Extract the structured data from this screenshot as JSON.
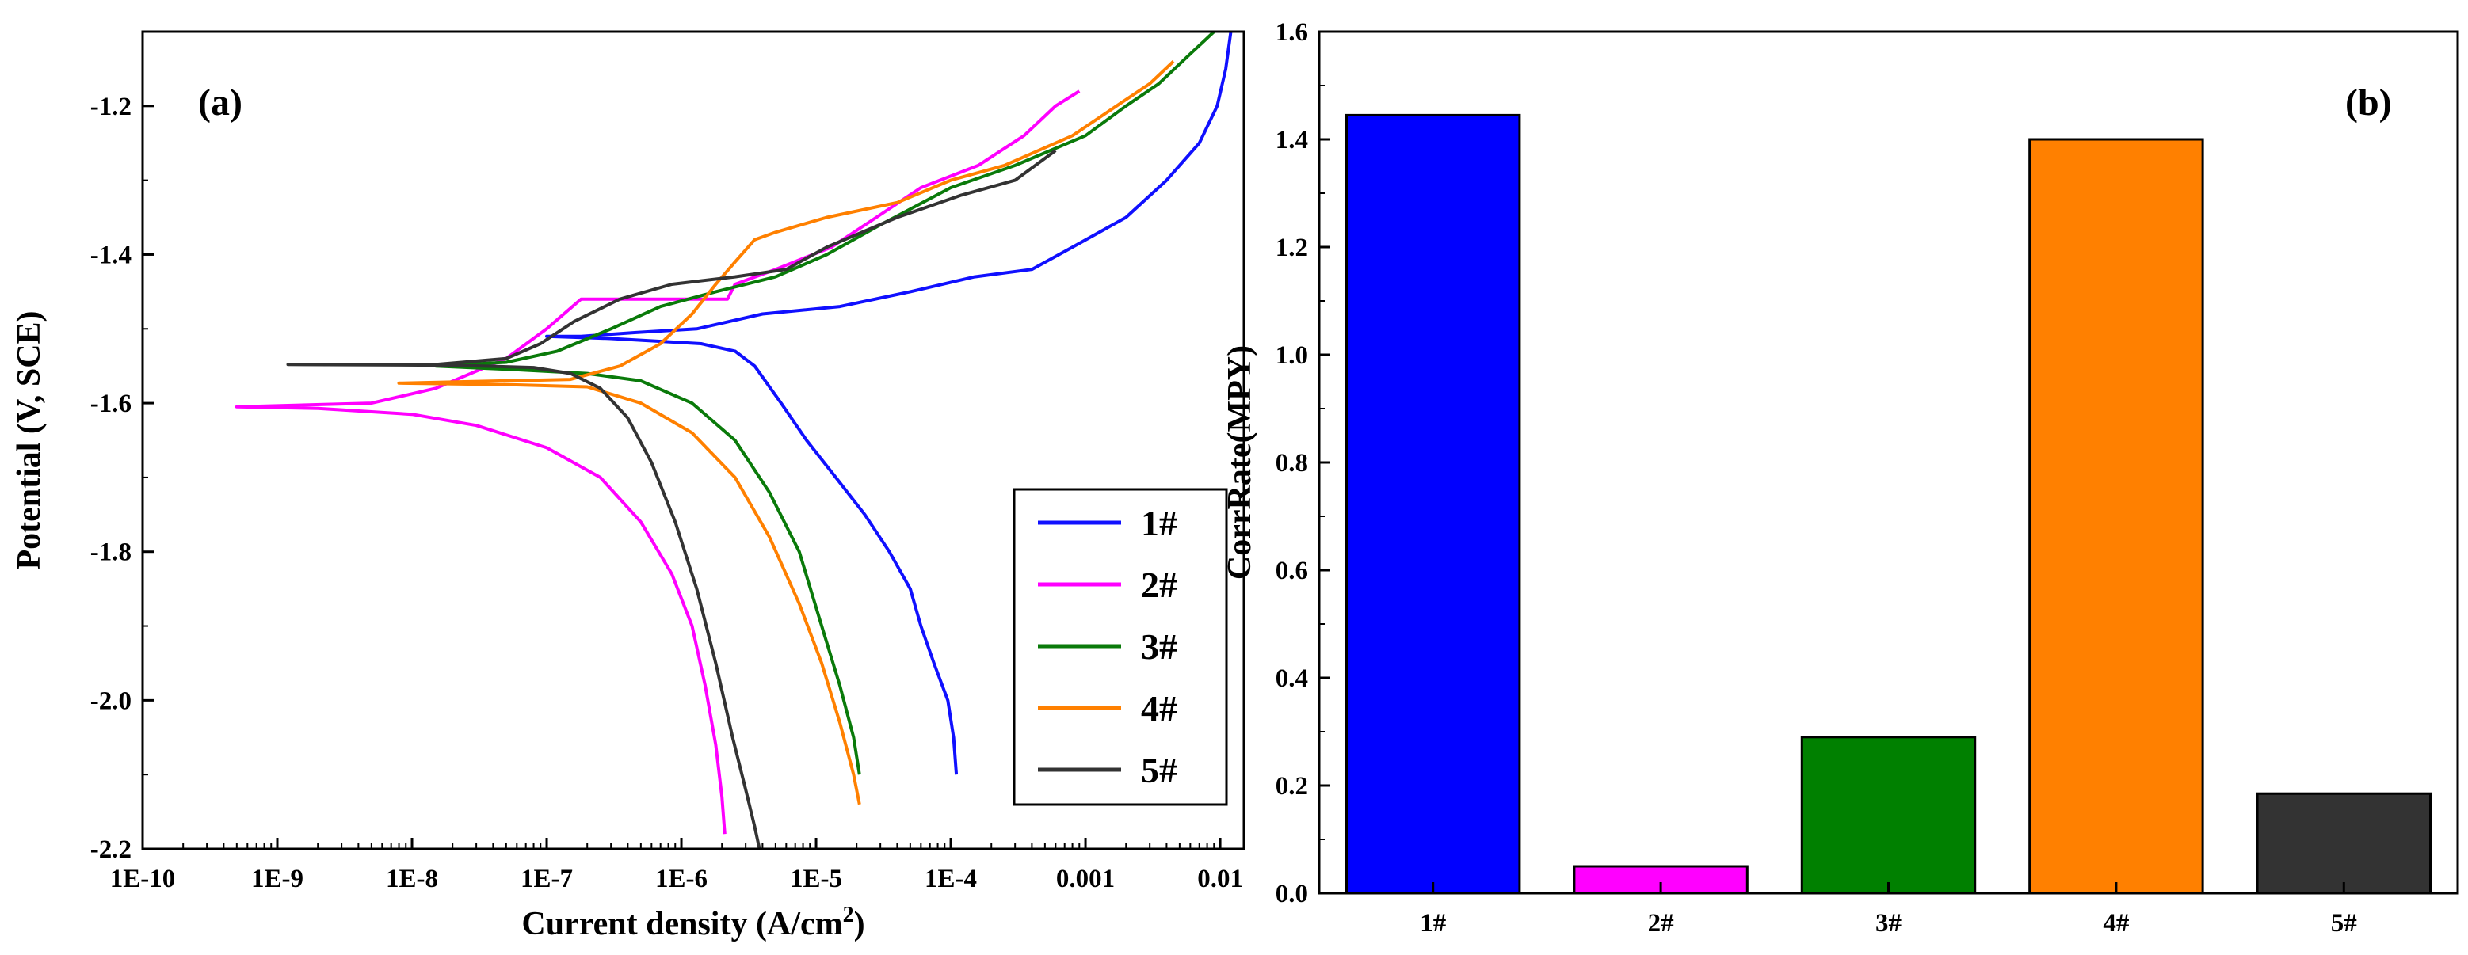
{
  "chart_data": [
    {
      "type": "line",
      "panel_label": "(a)",
      "xlabel": "Current density (A/cm",
      "xlabel_sup": "2",
      "xlabel_tail": ")",
      "ylabel": "Potential (V, SCE)",
      "xscale": "log",
      "xlim": [
        1e-10,
        0.015
      ],
      "ylim": [
        -2.2,
        -1.1
      ],
      "x_ticks": [
        1e-10,
        1e-09,
        1e-08,
        1e-07,
        1e-06,
        1e-05,
        0.0001,
        0.001,
        0.01
      ],
      "x_tick_labels": [
        "1E-10",
        "1E-9",
        "1E-8",
        "1E-7",
        "1E-6",
        "1E-5",
        "1E-4",
        "0.001",
        "0.01"
      ],
      "y_ticks": [
        -1.2,
        -1.4,
        -1.6,
        -1.8,
        -2.0,
        -2.2
      ],
      "y_tick_labels": [
        "-1.2",
        "-1.4",
        "-1.6",
        "-1.8",
        "-2.0",
        "-2.2"
      ],
      "legend_position": "bottom-right",
      "series": [
        {
          "name": "1#",
          "color": "#1010ff",
          "points": [
            [
              0.012,
              -1.1
            ],
            [
              0.011,
              -1.15
            ],
            [
              0.0095,
              -1.2
            ],
            [
              0.007,
              -1.25
            ],
            [
              0.004,
              -1.3
            ],
            [
              0.002,
              -1.35
            ],
            [
              0.0008,
              -1.39
            ],
            [
              0.0004,
              -1.42
            ],
            [
              0.00015,
              -1.43
            ],
            [
              5e-05,
              -1.45
            ],
            [
              1.5e-05,
              -1.47
            ],
            [
              4e-06,
              -1.48
            ],
            [
              1.3e-06,
              -1.5
            ],
            [
              4.5e-07,
              -1.505
            ],
            [
              1.8e-07,
              -1.51
            ],
            [
              1e-07,
              -1.51
            ],
            [
              3e-07,
              -1.513
            ],
            [
              1.4e-06,
              -1.52
            ],
            [
              2.5e-06,
              -1.53
            ],
            [
              3.5e-06,
              -1.55
            ],
            [
              5.5e-06,
              -1.6
            ],
            [
              8.5e-06,
              -1.65
            ],
            [
              1.4e-05,
              -1.7
            ],
            [
              2.3e-05,
              -1.75
            ],
            [
              3.5e-05,
              -1.8
            ],
            [
              5e-05,
              -1.85
            ],
            [
              6e-05,
              -1.9
            ],
            [
              7.5e-05,
              -1.95
            ],
            [
              9.5e-05,
              -2.0
            ],
            [
              0.000105,
              -2.05
            ],
            [
              0.00011,
              -2.1
            ]
          ]
        },
        {
          "name": "2#",
          "color": "#ff00ff",
          "points": [
            [
              0.0009,
              -1.18
            ],
            [
              0.0006,
              -1.2
            ],
            [
              0.00035,
              -1.24
            ],
            [
              0.00016,
              -1.28
            ],
            [
              6e-05,
              -1.31
            ],
            [
              2.8e-05,
              -1.35
            ],
            [
              1.3e-05,
              -1.39
            ],
            [
              5e-06,
              -1.42
            ],
            [
              2.5e-06,
              -1.44
            ],
            [
              2.2e-06,
              -1.46
            ],
            [
              1.8e-07,
              -1.46
            ],
            [
              1e-07,
              -1.5
            ],
            [
              5e-08,
              -1.54
            ],
            [
              1.5e-08,
              -1.58
            ],
            [
              5e-09,
              -1.6
            ],
            [
              5e-10,
              -1.605
            ],
            [
              2e-09,
              -1.607
            ],
            [
              1e-08,
              -1.615
            ],
            [
              3e-08,
              -1.63
            ],
            [
              1e-07,
              -1.66
            ],
            [
              2.5e-07,
              -1.7
            ],
            [
              5e-07,
              -1.76
            ],
            [
              8.5e-07,
              -1.83
            ],
            [
              1.2e-06,
              -1.9
            ],
            [
              1.5e-06,
              -1.98
            ],
            [
              1.8e-06,
              -2.06
            ],
            [
              2e-06,
              -2.13
            ],
            [
              2.1e-06,
              -2.18
            ]
          ]
        },
        {
          "name": "3#",
          "color": "#0a7a0a",
          "points": [
            [
              0.009,
              -1.1
            ],
            [
              0.006,
              -1.13
            ],
            [
              0.0035,
              -1.17
            ],
            [
              0.002,
              -1.2
            ],
            [
              0.001,
              -1.24
            ],
            [
              0.0003,
              -1.28
            ],
            [
              0.0001,
              -1.31
            ],
            [
              3e-05,
              -1.36
            ],
            [
              1.2e-05,
              -1.4
            ],
            [
              5e-06,
              -1.43
            ],
            [
              1.8e-06,
              -1.45
            ],
            [
              7e-07,
              -1.47
            ],
            [
              3e-07,
              -1.5
            ],
            [
              1.2e-07,
              -1.53
            ],
            [
              5e-08,
              -1.545
            ],
            [
              1.5e-08,
              -1.55
            ],
            [
              6e-08,
              -1.555
            ],
            [
              2e-07,
              -1.56
            ],
            [
              5e-07,
              -1.57
            ],
            [
              1.2e-06,
              -1.6
            ],
            [
              2.5e-06,
              -1.65
            ],
            [
              4.5e-06,
              -1.72
            ],
            [
              7.5e-06,
              -1.8
            ],
            [
              1.1e-05,
              -1.9
            ],
            [
              1.5e-05,
              -1.98
            ],
            [
              1.9e-05,
              -2.05
            ],
            [
              2.1e-05,
              -2.1
            ]
          ]
        },
        {
          "name": "4#",
          "color": "#ff8000",
          "points": [
            [
              0.0045,
              -1.14
            ],
            [
              0.003,
              -1.17
            ],
            [
              0.0017,
              -1.2
            ],
            [
              0.0008,
              -1.24
            ],
            [
              0.00025,
              -1.28
            ],
            [
              0.0001,
              -1.3
            ],
            [
              4e-05,
              -1.33
            ],
            [
              1.2e-05,
              -1.35
            ],
            [
              5e-06,
              -1.37
            ],
            [
              3.5e-06,
              -1.38
            ],
            [
              2.5e-06,
              -1.41
            ],
            [
              1.8e-06,
              -1.44
            ],
            [
              1.2e-06,
              -1.48
            ],
            [
              7e-07,
              -1.52
            ],
            [
              3.5e-07,
              -1.55
            ],
            [
              1.5e-07,
              -1.568
            ],
            [
              8e-09,
              -1.573
            ],
            [
              5e-08,
              -1.575
            ],
            [
              2e-07,
              -1.578
            ],
            [
              5e-07,
              -1.6
            ],
            [
              1.2e-06,
              -1.64
            ],
            [
              2.5e-06,
              -1.7
            ],
            [
              4.5e-06,
              -1.78
            ],
            [
              7.5e-06,
              -1.87
            ],
            [
              1.1e-05,
              -1.95
            ],
            [
              1.5e-05,
              -2.03
            ],
            [
              1.9e-05,
              -2.1
            ],
            [
              2.1e-05,
              -2.14
            ]
          ]
        },
        {
          "name": "5#",
          "color": "#333333",
          "points": [
            [
              0.0006,
              -1.26
            ],
            [
              0.0003,
              -1.3
            ],
            [
              0.00012,
              -1.32
            ],
            [
              4e-05,
              -1.35
            ],
            [
              1.2e-05,
              -1.39
            ],
            [
              6e-06,
              -1.42
            ],
            [
              2.5e-06,
              -1.43
            ],
            [
              8.5e-07,
              -1.44
            ],
            [
              3.5e-07,
              -1.46
            ],
            [
              1.6e-07,
              -1.49
            ],
            [
              9e-08,
              -1.52
            ],
            [
              5e-08,
              -1.54
            ],
            [
              1.5e-08,
              -1.548
            ],
            [
              1.2e-09,
              -1.548
            ],
            [
              2e-08,
              -1.549
            ],
            [
              8e-08,
              -1.552
            ],
            [
              1.5e-07,
              -1.56
            ],
            [
              2.5e-07,
              -1.58
            ],
            [
              4e-07,
              -1.62
            ],
            [
              6e-07,
              -1.68
            ],
            [
              9e-07,
              -1.76
            ],
            [
              1.3e-06,
              -1.85
            ],
            [
              1.8e-06,
              -1.95
            ],
            [
              2.4e-06,
              -2.05
            ],
            [
              3e-06,
              -2.12
            ],
            [
              3.5e-06,
              -2.17
            ],
            [
              3.8e-06,
              -2.2
            ]
          ]
        }
      ]
    },
    {
      "type": "bar",
      "panel_label": "(b)",
      "xlabel": "",
      "ylabel": "CorrRate(MPY)",
      "ylim": [
        0,
        1.6
      ],
      "y_ticks": [
        0.0,
        0.2,
        0.4,
        0.6,
        0.8,
        1.0,
        1.2,
        1.4,
        1.6
      ],
      "y_tick_labels": [
        "0.0",
        "0.2",
        "0.4",
        "0.6",
        "0.8",
        "1.0",
        "1.2",
        "1.4",
        "1.6"
      ],
      "categories": [
        "1#",
        "2#",
        "3#",
        "4#",
        "5#"
      ],
      "values": [
        1.445,
        0.05,
        0.29,
        1.4,
        0.185
      ],
      "colors": [
        "#0000ff",
        "#ff00ff",
        "#008000",
        "#ff8000",
        "#333333"
      ]
    }
  ]
}
